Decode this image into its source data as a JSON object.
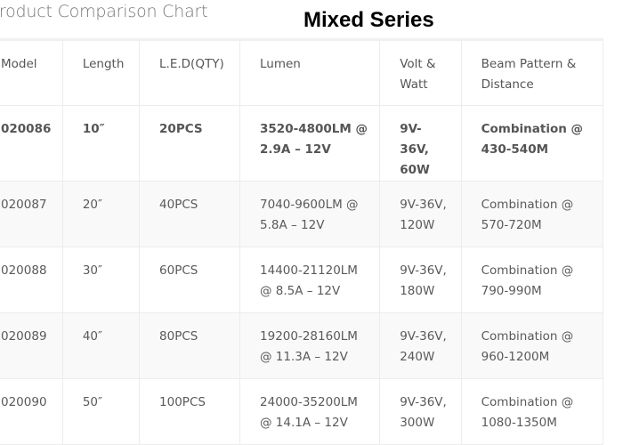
{
  "page": {
    "title": "Product Comparison Chart",
    "series_heading": "Mixed Series"
  },
  "table": {
    "headers": [
      "Model",
      "Length",
      "L.E.D(QTY)",
      "Lumen",
      "Volt & Watt",
      "Beam Pattern & Distance"
    ],
    "rows": [
      {
        "model": "020086",
        "length": "10″",
        "led": "20PCS",
        "lumen": "3520-4800LM @ 2.9A – 12V",
        "volt": "9V-36V, 60W",
        "beam": "Combination @ 430-540M"
      },
      {
        "model": "020087",
        "length": "20″",
        "led": "40PCS",
        "lumen": "7040-9600LM @ 5.8A – 12V",
        "volt": "9V-36V, 120W",
        "beam": "Combination @ 570-720M"
      },
      {
        "model": "020088",
        "length": "30″",
        "led": "60PCS",
        "lumen": "14400-21120LM @ 8.5A – 12V",
        "volt": "9V-36V, 180W",
        "beam": "Combination @ 790-990M"
      },
      {
        "model": "020089",
        "length": "40″",
        "led": "80PCS",
        "lumen": "19200-28160LM @ 11.3A – 12V",
        "volt": "9V-36V, 240W",
        "beam": "Combination @ 960-1200M"
      },
      {
        "model": "020090",
        "length": "50″",
        "led": "100PCS",
        "lumen": "24000-35200LM @ 14.1A – 12V",
        "volt": "9V-36V, 300W",
        "beam": "Combination @ 1080-1350M"
      }
    ]
  }
}
